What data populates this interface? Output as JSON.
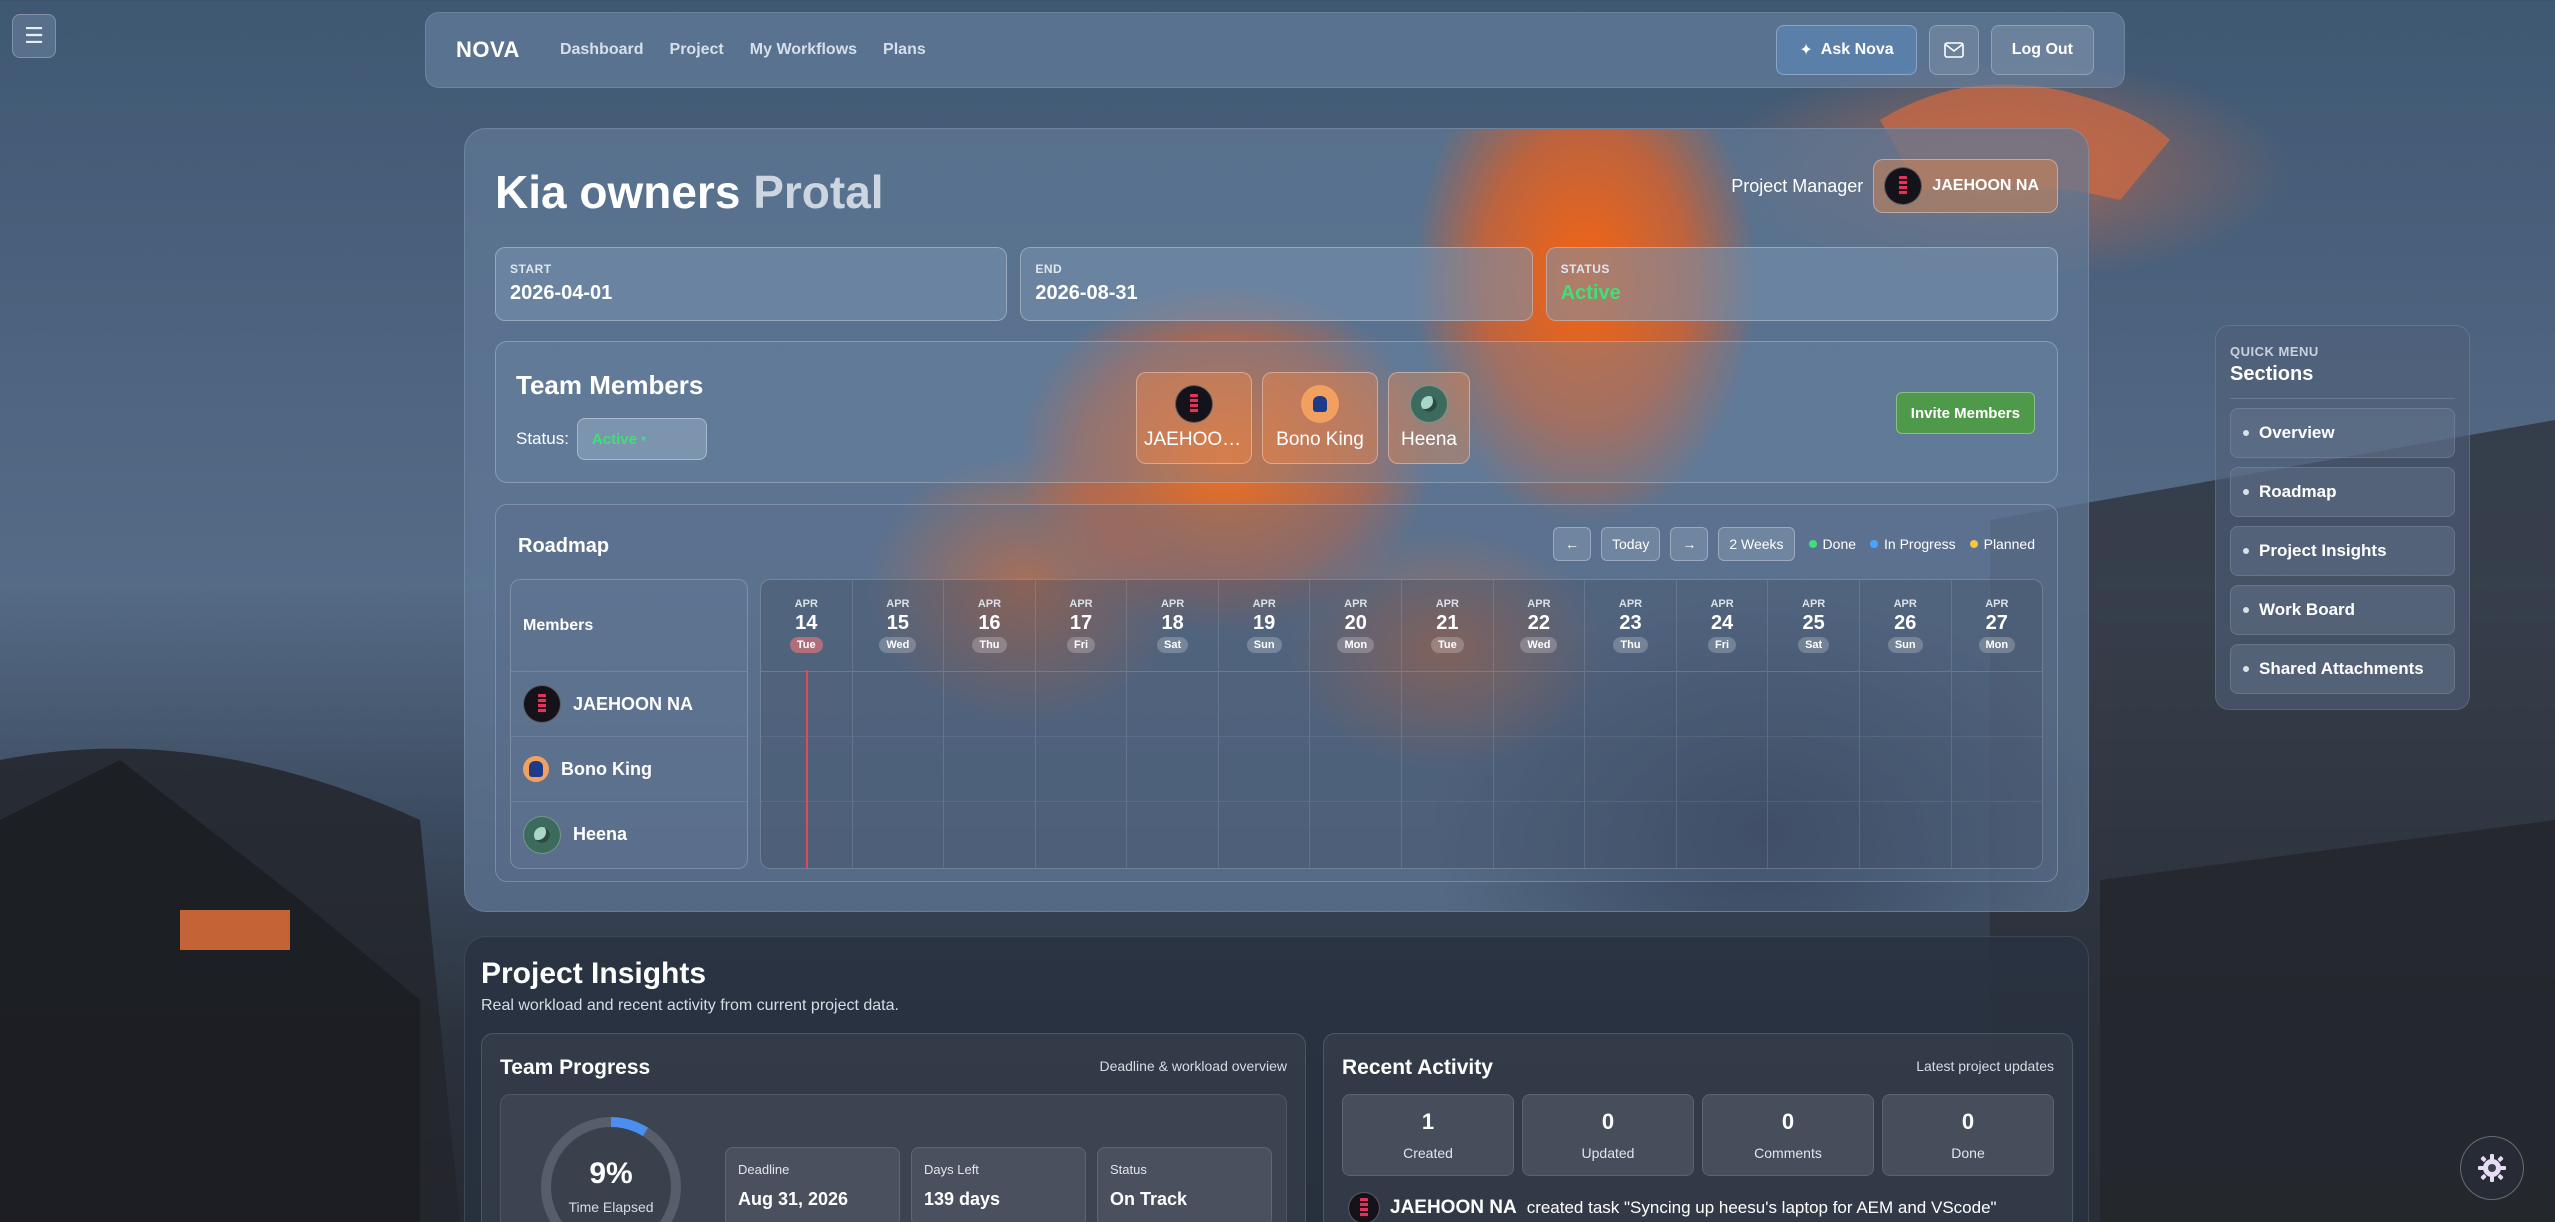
{
  "menu_icon": "hamburger-icon",
  "nav": {
    "brand": "NOVA",
    "links": [
      "Dashboard",
      "Project",
      "My Workflows",
      "Plans"
    ],
    "ask_label": "Ask Nova",
    "logout_label": "Log Out"
  },
  "project": {
    "title_part1": "Kia owners",
    "title_part2": "Protal",
    "manager_label": "Project Manager",
    "manager_name": "JAEHOON NA",
    "start_label": "START",
    "start_value": "2026-04-01",
    "end_label": "END",
    "end_value": "2026-08-31",
    "status_label": "STATUS",
    "status_value": "Active"
  },
  "team": {
    "title": "Team Members",
    "status_label": "Status:",
    "status_value": "Active",
    "members": [
      "JAEHOON NA",
      "Bono King",
      "Heena"
    ],
    "invite_label": "Invite Members"
  },
  "roadmap": {
    "title": "Roadmap",
    "prev": "←",
    "today_label": "Today",
    "next": "→",
    "range_label": "2 Weeks",
    "legend": [
      {
        "label": "Done",
        "color": "#3ee07a"
      },
      {
        "label": "In Progress",
        "color": "#4aa3ff"
      },
      {
        "label": "Planned",
        "color": "#f5c542"
      }
    ],
    "members_header": "Members",
    "rows": [
      "JAEHOON NA",
      "Bono King",
      "Heena"
    ],
    "days": [
      {
        "month": "APR",
        "day": "14",
        "weekday": "Tue"
      },
      {
        "month": "APR",
        "day": "15",
        "weekday": "Wed"
      },
      {
        "month": "APR",
        "day": "16",
        "weekday": "Thu"
      },
      {
        "month": "APR",
        "day": "17",
        "weekday": "Fri"
      },
      {
        "month": "APR",
        "day": "18",
        "weekday": "Sat"
      },
      {
        "month": "APR",
        "day": "19",
        "weekday": "Sun"
      },
      {
        "month": "APR",
        "day": "20",
        "weekday": "Mon"
      },
      {
        "month": "APR",
        "day": "21",
        "weekday": "Tue"
      },
      {
        "month": "APR",
        "day": "22",
        "weekday": "Wed"
      },
      {
        "month": "APR",
        "day": "23",
        "weekday": "Thu"
      },
      {
        "month": "APR",
        "day": "24",
        "weekday": "Fri"
      },
      {
        "month": "APR",
        "day": "25",
        "weekday": "Sat"
      },
      {
        "month": "APR",
        "day": "26",
        "weekday": "Sun"
      },
      {
        "month": "APR",
        "day": "27",
        "weekday": "Mon"
      }
    ]
  },
  "insights": {
    "title": "Project Insights",
    "subtitle": "Real workload and recent activity from current project data.",
    "progress": {
      "title": "Team Progress",
      "right": "Deadline & workload overview",
      "percent": "9%",
      "percent_label": "Time Elapsed",
      "deadline_label": "Deadline",
      "deadline_value": "Aug 31, 2026",
      "days_left_label": "Days Left",
      "days_left_value": "139 days",
      "status_label": "Status",
      "status_value": "On Track"
    },
    "activity": {
      "title": "Recent Activity",
      "right": "Latest project updates",
      "stats": [
        {
          "value": "1",
          "label": "Created"
        },
        {
          "value": "0",
          "label": "Updated"
        },
        {
          "value": "0",
          "label": "Comments"
        },
        {
          "value": "0",
          "label": "Done"
        }
      ],
      "entry_user": "JAEHOON NA",
      "entry_text": "created task \"Syncing up heesu's laptop for AEM and VScode\""
    }
  },
  "quick_menu": {
    "label": "QUICK MENU",
    "title": "Sections",
    "items": [
      "Overview",
      "Roadmap",
      "Project Insights",
      "Work Board",
      "Shared Attachments"
    ]
  },
  "settings_icon": "gear-icon"
}
